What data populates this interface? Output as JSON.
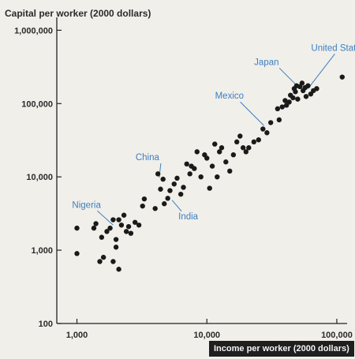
{
  "chart_data": {
    "type": "scatter",
    "title": "",
    "ylabel": "Capital per worker (2000 dollars)",
    "xlabel": "Income per worker (2000 dollars)",
    "x_scale": "log",
    "y_scale": "log",
    "xlim": [
      700,
      120000
    ],
    "ylim": [
      100,
      1500000
    ],
    "x_ticks": [
      1000,
      10000,
      100000
    ],
    "x_tick_labels": [
      "1,000",
      "10,000",
      "100,000"
    ],
    "y_ticks": [
      100,
      1000,
      10000,
      100000,
      1000000
    ],
    "y_tick_labels": [
      "100",
      "1,000",
      "10,000",
      "100,000",
      "1,000,000"
    ],
    "grid": false,
    "colors": {
      "points": "#1a1a1a",
      "annotation": "#3b7fc0",
      "axis": "#222222"
    },
    "annotations": [
      {
        "label": "Nigeria",
        "x": 1900,
        "y": 2200
      },
      {
        "label": "China",
        "x": 4300,
        "y": 9800
      },
      {
        "label": "India",
        "x": 5400,
        "y": 4800
      },
      {
        "label": "Mexico",
        "x": 27500,
        "y": 50000
      },
      {
        "label": "Japan",
        "x": 52000,
        "y": 160000
      },
      {
        "label": "United States",
        "x": 60000,
        "y": 160000
      }
    ],
    "points": [
      [
        1000,
        900
      ],
      [
        1000,
        2000
      ],
      [
        1350,
        2000
      ],
      [
        1400,
        2300
      ],
      [
        1500,
        700
      ],
      [
        1550,
        1500
      ],
      [
        1600,
        800
      ],
      [
        1700,
        1800
      ],
      [
        1800,
        2000
      ],
      [
        1900,
        700
      ],
      [
        1900,
        2600
      ],
      [
        2000,
        1100
      ],
      [
        2000,
        1400
      ],
      [
        2100,
        550
      ],
      [
        2100,
        2600
      ],
      [
        2200,
        2200
      ],
      [
        2300,
        3000
      ],
      [
        2400,
        1800
      ],
      [
        2500,
        2100
      ],
      [
        2600,
        1700
      ],
      [
        2800,
        2400
      ],
      [
        3000,
        2200
      ],
      [
        3200,
        4000
      ],
      [
        3300,
        5000
      ],
      [
        4000,
        3700
      ],
      [
        4200,
        11000
      ],
      [
        4400,
        6800
      ],
      [
        4600,
        9300
      ],
      [
        4700,
        4300
      ],
      [
        5000,
        5100
      ],
      [
        5200,
        6500
      ],
      [
        5600,
        8000
      ],
      [
        5900,
        9600
      ],
      [
        6300,
        5800
      ],
      [
        6600,
        7200
      ],
      [
        7000,
        15000
      ],
      [
        7400,
        11000
      ],
      [
        7600,
        14000
      ],
      [
        8000,
        13000
      ],
      [
        8400,
        22000
      ],
      [
        9000,
        10000
      ],
      [
        9600,
        20000
      ],
      [
        10000,
        18000
      ],
      [
        10500,
        7000
      ],
      [
        11000,
        14000
      ],
      [
        11500,
        28000
      ],
      [
        12000,
        10000
      ],
      [
        12500,
        22000
      ],
      [
        13000,
        25000
      ],
      [
        14000,
        16000
      ],
      [
        15000,
        12000
      ],
      [
        16000,
        20000
      ],
      [
        17000,
        30000
      ],
      [
        18000,
        36000
      ],
      [
        19000,
        25000
      ],
      [
        20000,
        22000
      ],
      [
        21000,
        25000
      ],
      [
        23000,
        30000
      ],
      [
        25000,
        32000
      ],
      [
        27000,
        45000
      ],
      [
        29000,
        40000
      ],
      [
        31000,
        55000
      ],
      [
        35000,
        85000
      ],
      [
        36000,
        60000
      ],
      [
        38000,
        90000
      ],
      [
        40000,
        110000
      ],
      [
        41000,
        95000
      ],
      [
        43000,
        105000
      ],
      [
        44000,
        130000
      ],
      [
        46000,
        120000
      ],
      [
        47000,
        160000
      ],
      [
        48000,
        145000
      ],
      [
        49000,
        175000
      ],
      [
        50000,
        115000
      ],
      [
        52000,
        170000
      ],
      [
        54000,
        190000
      ],
      [
        55000,
        150000
      ],
      [
        57000,
        165000
      ],
      [
        58000,
        125000
      ],
      [
        60000,
        175000
      ],
      [
        63000,
        135000
      ],
      [
        66000,
        150000
      ],
      [
        70000,
        160000
      ],
      [
        110000,
        230000
      ]
    ]
  }
}
